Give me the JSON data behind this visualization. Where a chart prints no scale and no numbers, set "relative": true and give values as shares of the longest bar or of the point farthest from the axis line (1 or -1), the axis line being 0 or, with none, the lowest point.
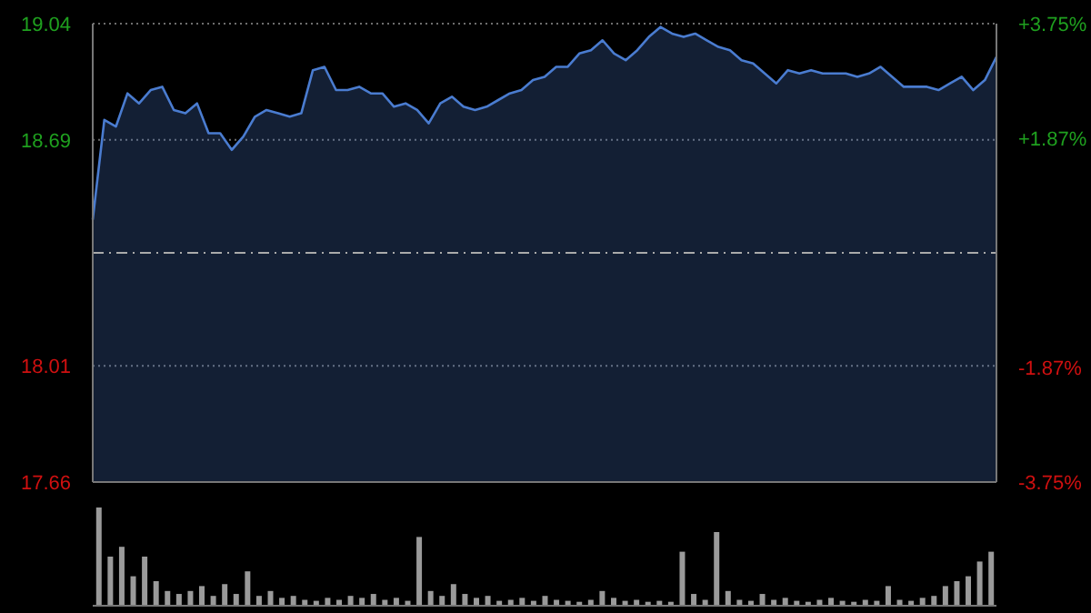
{
  "chart_data": [
    {
      "type": "area",
      "categories": [
        null,
        null,
        null,
        null,
        null,
        null,
        null,
        null,
        null,
        null,
        null,
        null,
        null,
        null,
        null,
        null,
        null,
        null,
        null,
        null,
        null,
        null,
        null,
        null,
        null,
        null,
        null,
        null,
        null,
        null,
        null,
        null,
        null,
        null,
        null,
        null,
        null,
        null,
        null,
        null,
        null,
        null,
        null,
        null,
        null,
        null,
        null,
        null,
        null,
        null,
        null,
        null,
        null,
        null,
        null,
        null,
        null,
        null,
        null,
        null,
        null,
        null,
        null,
        null,
        null,
        null,
        null,
        null,
        null,
        null,
        null,
        null,
        null,
        null,
        null,
        null,
        null,
        null,
        null
      ],
      "series": [
        {
          "color": "#4a7cd0",
          "values": [
            18.45,
            18.75,
            18.73,
            18.83,
            18.8,
            18.84,
            18.85,
            18.78,
            18.77,
            18.8,
            18.71,
            18.71,
            18.66,
            18.7,
            18.76,
            18.78,
            18.77,
            18.76,
            18.77,
            18.9,
            18.91,
            18.84,
            18.84,
            18.85,
            18.83,
            18.83,
            18.79,
            18.8,
            18.78,
            18.74,
            18.8,
            18.82,
            18.79,
            18.78,
            18.79,
            18.81,
            18.83,
            18.84,
            18.87,
            18.88,
            18.91,
            18.91,
            18.95,
            18.96,
            18.99,
            18.95,
            18.93,
            18.96,
            19.0,
            19.03,
            19.01,
            19.0,
            19.01,
            18.99,
            18.97,
            18.96,
            18.93,
            18.92,
            18.89,
            18.86,
            18.9,
            18.89,
            18.9,
            18.89,
            18.89,
            18.89,
            18.88,
            18.89,
            18.91,
            18.88,
            18.85,
            18.85,
            18.85,
            18.84,
            18.86,
            18.88,
            18.84,
            18.87,
            18.94
          ]
        }
      ],
      "ylim": [
        17.66,
        19.04
      ],
      "yticks": [
        17.66,
        18.01,
        18.69,
        19.04
      ],
      "y2lim": [
        -3.75,
        3.75
      ],
      "y2ticks": [
        {
          "value": -3.75,
          "label": "-3.75%"
        },
        {
          "value": -1.87,
          "label": "-1.87%"
        },
        {
          "value": 1.87,
          "label": "+1.87%"
        },
        {
          "value": 3.75,
          "label": "+3.75%"
        }
      ],
      "ref_lines": [
        {
          "axis": "y",
          "value": 18.35,
          "label": null,
          "line_style": "dashed"
        }
      ],
      "grid": "y",
      "tick_labels": "y"
    },
    {
      "type": "bar",
      "relative": true,
      "categories": [
        null,
        null,
        null,
        null,
        null,
        null,
        null,
        null,
        null,
        null,
        null,
        null,
        null,
        null,
        null,
        null,
        null,
        null,
        null,
        null,
        null,
        null,
        null,
        null,
        null,
        null,
        null,
        null,
        null,
        null,
        null,
        null,
        null,
        null,
        null,
        null,
        null,
        null,
        null,
        null,
        null,
        null,
        null,
        null,
        null,
        null,
        null,
        null,
        null,
        null,
        null,
        null,
        null,
        null,
        null,
        null,
        null,
        null,
        null,
        null,
        null,
        null,
        null,
        null,
        null,
        null,
        null,
        null,
        null,
        null,
        null,
        null,
        null,
        null,
        null,
        null,
        null,
        null,
        null
      ],
      "values": [
        1.0,
        0.5,
        0.6,
        0.3,
        0.5,
        0.25,
        0.15,
        0.12,
        0.15,
        0.2,
        0.1,
        0.22,
        0.12,
        0.35,
        0.1,
        0.15,
        0.08,
        0.1,
        0.06,
        0.05,
        0.08,
        0.06,
        0.1,
        0.08,
        0.12,
        0.06,
        0.08,
        0.05,
        0.7,
        0.15,
        0.1,
        0.22,
        0.12,
        0.08,
        0.1,
        0.05,
        0.06,
        0.08,
        0.05,
        0.1,
        0.06,
        0.05,
        0.04,
        0.06,
        0.15,
        0.08,
        0.05,
        0.06,
        0.04,
        0.05,
        0.04,
        0.55,
        0.12,
        0.06,
        0.75,
        0.15,
        0.06,
        0.05,
        0.12,
        0.06,
        0.08,
        0.05,
        0.04,
        0.06,
        0.08,
        0.05,
        0.04,
        0.06,
        0.05,
        0.2,
        0.06,
        0.05,
        0.08,
        0.1,
        0.2,
        0.25,
        0.3,
        0.45,
        0.55
      ],
      "color": "#9a9a9a"
    }
  ]
}
